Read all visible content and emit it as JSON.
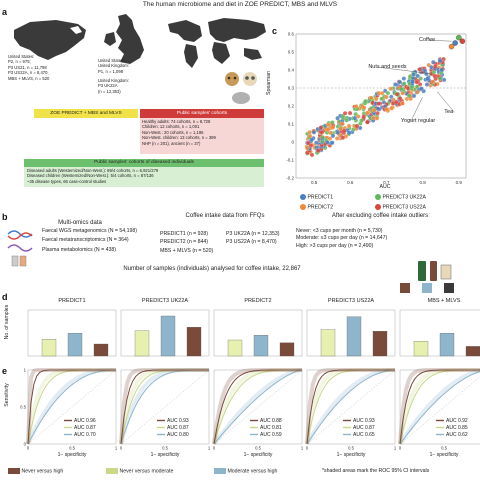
{
  "title": "The human microbiome and diet in ZOE PREDICT, MBS and MLVS",
  "panels": {
    "a": "a",
    "b": "b",
    "c": "c",
    "d": "d",
    "e": "e"
  },
  "panel_a": {
    "us_text": [
      "United States:",
      "P2, n = 975;",
      "P3 US21, n = 11,798",
      "P3 US22A, n = 8,470",
      "MBS + MLVS, n = 520"
    ],
    "uk_text": [
      "United States/",
      "United Kingdom:",
      "P1, n = 1,098"
    ],
    "uk2_text": [
      "United Kingdom:",
      "P3 UK22A",
      "(n = 12,353)"
    ],
    "zoe_header": "ZOE PREDICT + MBS and MLVS",
    "public_header": "Public samples' cohorts",
    "public_lines": [
      "Healthy adults: 74 cohorts, n = 8,728",
      "Children: 12 cohorts, n = 1,001",
      "Non-West.: 20 cohorts, n = 1,195",
      "Non-West. children: 13 cohorts, n = 399",
      "NHP (n = 201), ancient (n = 37)"
    ],
    "diseased_header": "Public samples' cohorts of diseased individuals",
    "diseased_lines": [
      "Diseased adults (Westernized/Non-West.): 89/4 cohorts, n = 6,921/279",
      "Diseased children (Westernized/Non-West.): 5/4 cohorts, n = 87/136",
      "~35 disease types, 66 case-control studies"
    ]
  },
  "panel_b": {
    "multiomics_title": "Multi-omics data",
    "omics": [
      "Faecal WGS metagenomics (N = 54,198)",
      "Faecal metatranscriptomics (N = 364)",
      "Plasma metabolomics (N = 438)"
    ],
    "ffq_title": "Coffee intake data from FFQs",
    "ffq_left": [
      "PREDICT1 (n = 928)",
      "PREDICT2 (n = 844)",
      "MBS + MLVS (n = 520)"
    ],
    "ffq_right": [
      "P3 UK22A (n = 12,353)",
      "P3 US22A (n = 8,470)"
    ],
    "outliers_title": "After excluding coffee intake outliers",
    "outliers": [
      "Never: <3 cups per month (n = 5,730)",
      "Moderate: ≤3 cups per day (n = 14,647)",
      "High: >3 cups per day (n = 2,490)"
    ],
    "summary": "Number of samples (individuals) analysed for coffee intake, 22,867"
  },
  "panel_c": {
    "ylabel": "Spearman",
    "xlabel": "AUC",
    "yticks": [
      "0.6",
      "0.5",
      "0.4",
      "0.3",
      "0.2",
      "0.1",
      "0",
      "-0.1",
      "-0.2"
    ],
    "xticks": [
      "0.5",
      "0.6",
      "0.7",
      "0.8",
      "0.9"
    ],
    "annotations": [
      "Coffee",
      "Nuts and seeds",
      "Tea",
      "Yogurt regular"
    ],
    "legend": [
      "PREDICT1",
      "PREDICT2",
      "PREDICT3 UK22A",
      "PREDICT3 US22A"
    ],
    "colors": [
      "#4a7fc1",
      "#f0883a",
      "#5fb85a",
      "#d9453c"
    ]
  },
  "panel_d": {
    "ylabel": "No. of samples",
    "titles": [
      "PREDICT1",
      "PREDICT3 UK22A",
      "PREDICT2",
      "PREDICT3 US22A",
      "MBS + MLVS"
    ],
    "colors": [
      "#e8f0b0",
      "#8fb5cc",
      "#7a4a3a"
    ],
    "relative_heights": [
      [
        0.42,
        0.57,
        0.3
      ],
      [
        0.63,
        1.0,
        0.72
      ],
      [
        0.4,
        0.52,
        0.33
      ],
      [
        0.66,
        0.98,
        0.62
      ],
      [
        0.37,
        0.57,
        0.24
      ]
    ]
  },
  "panel_e": {
    "ylabel": "Sensitivity",
    "xlabel": "1− specificity",
    "xticks": [
      "0",
      "0.5",
      "1"
    ],
    "yticks": [
      "0",
      "0.5",
      "1"
    ],
    "aucs": [
      [
        "AUC 0.96",
        "AUC 0.87",
        "AUC 0.70"
      ],
      [
        "AUC 0.93",
        "AUC 0.87",
        "AUC 0.80"
      ],
      [
        "AUC 0.88",
        "AUC 0.81",
        "AUC 0.59"
      ],
      [
        "AUC 0.93",
        "AUC 0.87",
        "AUC 0.65"
      ],
      [
        "AUC 0.92",
        "AUC 0.85",
        "AUC 0.62"
      ]
    ],
    "legend": [
      "Never versus high",
      "Never versus moderate",
      "Moderate versus high"
    ],
    "note": "*shaded areas mark the ROC 95% CI intervals",
    "colors": [
      "#7a4a3a",
      "#c8d98a",
      "#8fb5cc"
    ]
  }
}
